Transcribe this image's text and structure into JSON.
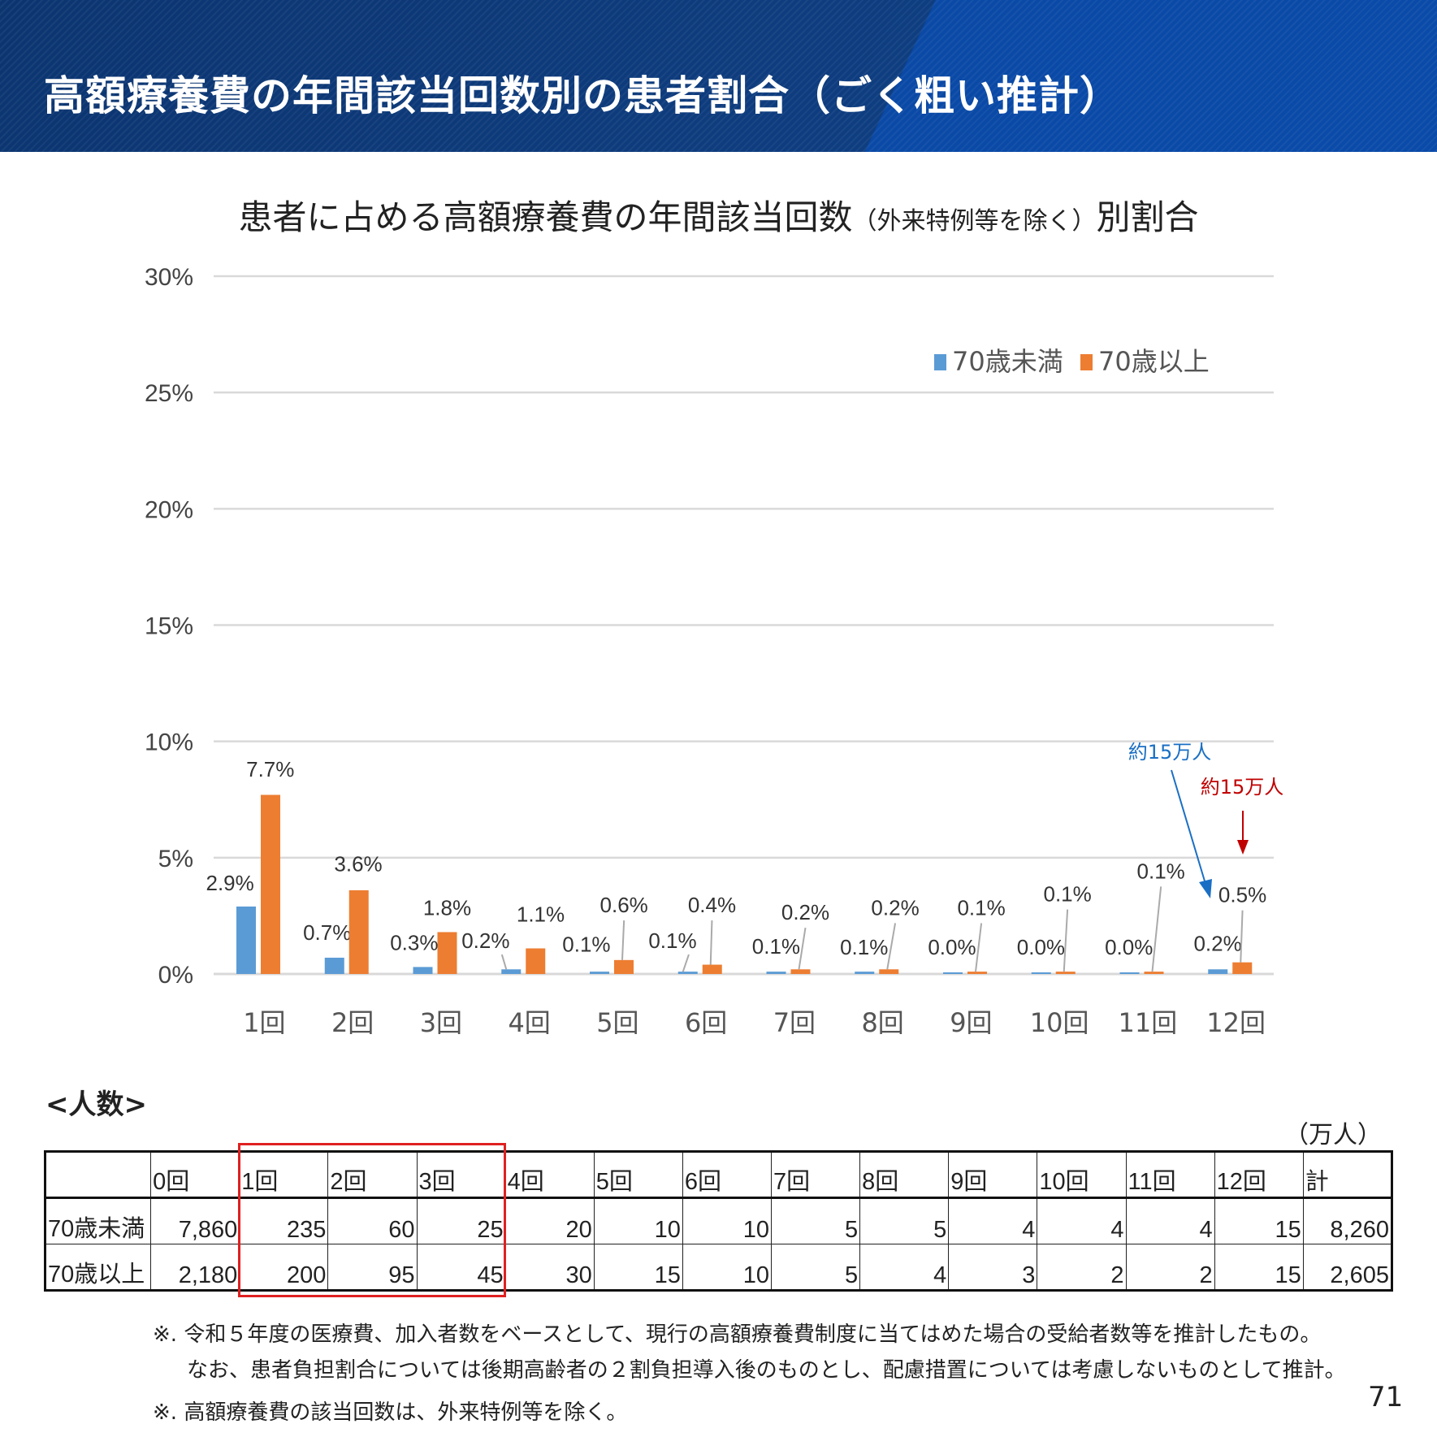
{
  "header": {
    "title": "高額療養費の年間該当回数別の患者割合（ごく粗い推計）"
  },
  "chart_data": {
    "type": "bar",
    "title_main": "患者に占める高額療養費の年間該当回数",
    "title_small": "（外来特例等を除く）",
    "title_end": "別割合",
    "categories": [
      "1回",
      "2回",
      "3回",
      "4回",
      "5回",
      "6回",
      "7回",
      "8回",
      "9回",
      "10回",
      "11回",
      "12回"
    ],
    "yticks": [
      "0%",
      "5%",
      "10%",
      "15%",
      "20%",
      "25%",
      "30%"
    ],
    "ylim": [
      0,
      30
    ],
    "grid": true,
    "legend_position": "top-right",
    "series": [
      {
        "name": "70歳未満",
        "color": "#5b9bd5",
        "values": [
          2.9,
          0.7,
          0.3,
          0.2,
          0.1,
          0.1,
          0.1,
          0.1,
          0.0,
          0.0,
          0.0,
          0.2
        ],
        "labels": [
          "2.9%",
          "0.7%",
          "0.3%",
          "0.2%",
          "0.1%",
          "0.1%",
          "0.1%",
          "0.1%",
          "0.0%",
          "0.0%",
          "0.0%",
          "0.2%"
        ]
      },
      {
        "name": "70歳以上",
        "color": "#ed7d31",
        "values": [
          7.7,
          3.6,
          1.8,
          1.1,
          0.6,
          0.4,
          0.2,
          0.2,
          0.1,
          0.1,
          0.1,
          0.5
        ],
        "labels": [
          "7.7%",
          "3.6%",
          "1.8%",
          "1.1%",
          "0.6%",
          "0.4%",
          "0.2%",
          "0.2%",
          "0.1%",
          "0.1%",
          "0.1%",
          "0.5%"
        ]
      }
    ],
    "annotations": [
      {
        "text": "約15万人",
        "color": "#1a6fc4"
      },
      {
        "text": "約15万人",
        "color": "#c00000"
      }
    ]
  },
  "table": {
    "section_label": "<人数>",
    "unit": "（万人）",
    "headers": [
      "",
      "0回",
      "1回",
      "2回",
      "3回",
      "4回",
      "5回",
      "6回",
      "7回",
      "8回",
      "9回",
      "10回",
      "11回",
      "12回",
      "計"
    ],
    "rows": [
      [
        "70歳未満",
        "7,860",
        "235",
        "60",
        "25",
        "20",
        "10",
        "10",
        "5",
        "5",
        "4",
        "4",
        "4",
        "15",
        "8,260"
      ],
      [
        "70歳以上",
        "2,180",
        "200",
        "95",
        "45",
        "30",
        "15",
        "10",
        "5",
        "4",
        "3",
        "2",
        "2",
        "15",
        "2,605"
      ]
    ]
  },
  "notes": [
    "※. 令和５年度の医療費、加入者数をベースとして、現行の高額療養費制度に当てはめた場合の受給者数等を推計したもの。",
    "なお、患者負担割合については後期高齢者の２割負担導入後のものとし、配慮措置については考慮しないものとして推計。",
    "※. 高額療養費の該当回数は、外来特例等を除く。"
  ],
  "page_number": "71"
}
